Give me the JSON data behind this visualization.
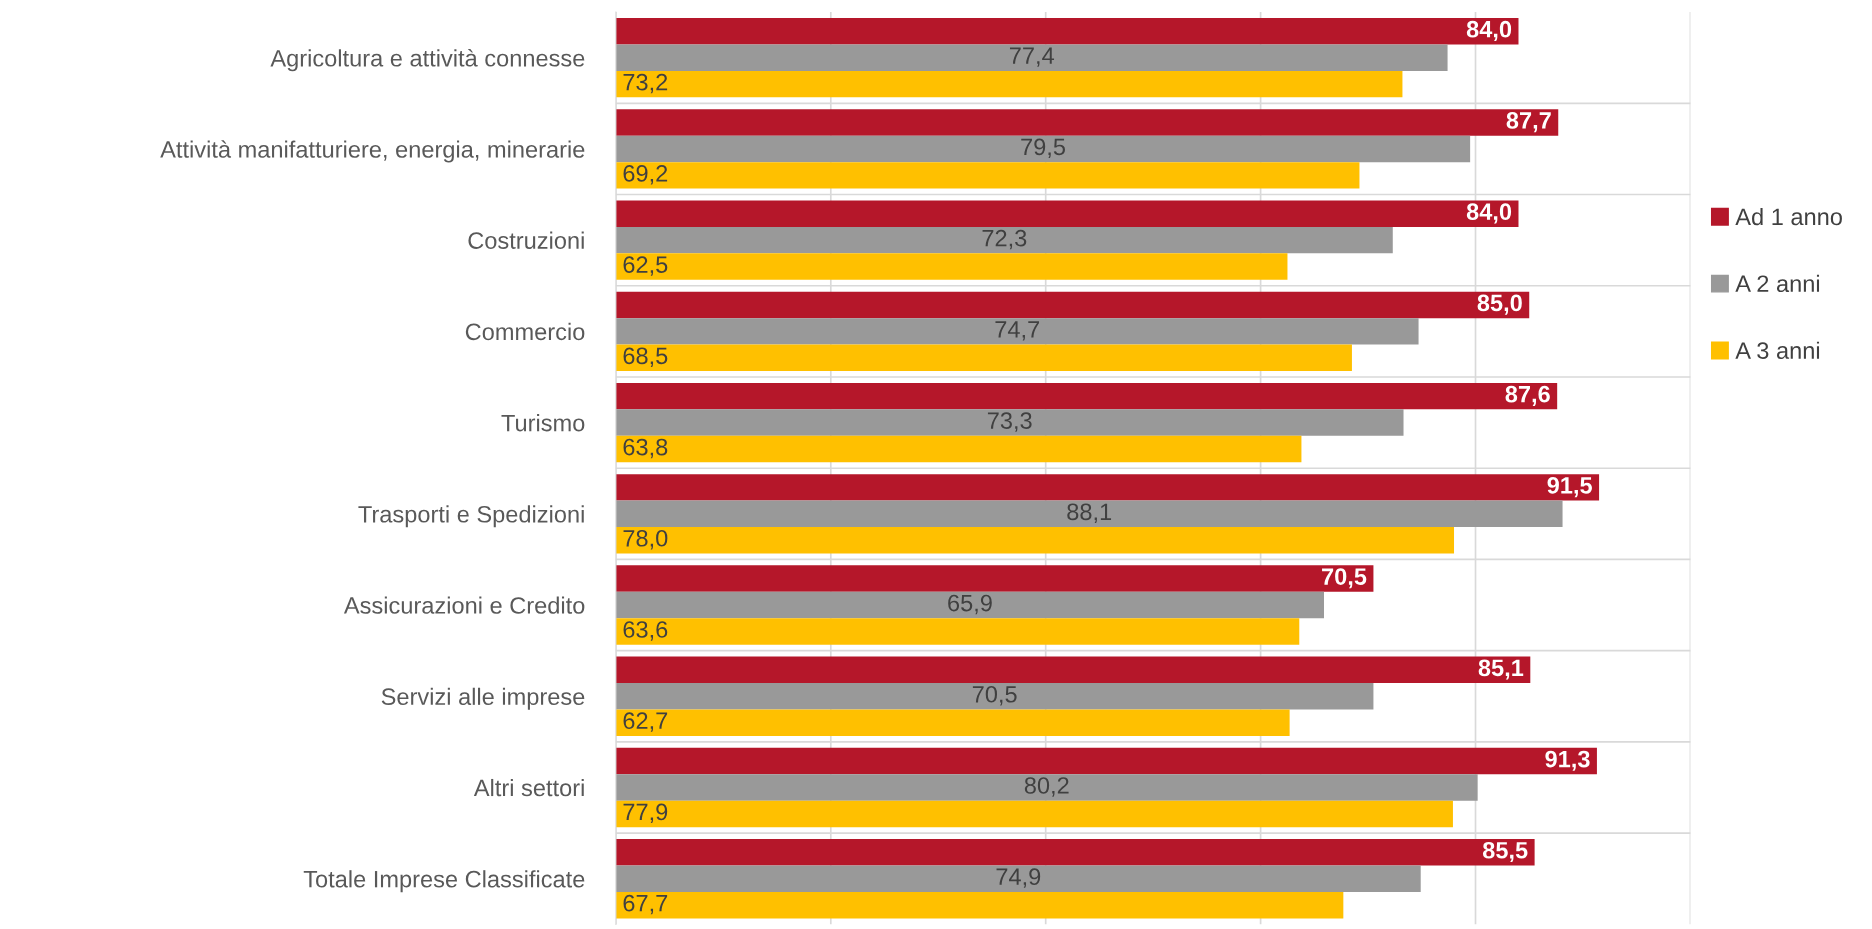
{
  "chart_data": {
    "type": "bar",
    "orientation": "horizontal",
    "categories": [
      "Agricoltura e attività connesse",
      "Attività manifatturiere, energia, minerarie",
      "Costruzioni",
      "Commercio",
      "Turismo",
      "Trasporti e Spedizioni",
      "Assicurazioni e Credito",
      "Servizi alle imprese",
      "Altri settori",
      "Totale Imprese Classificate"
    ],
    "series": [
      {
        "name": "Ad 1 anno",
        "color": "#b5172a",
        "values": [
          84.0,
          87.7,
          84.0,
          85.0,
          87.6,
          91.5,
          70.5,
          85.1,
          91.3,
          85.5
        ],
        "value_labels": [
          "84,0",
          "87,7",
          "84,0",
          "85,0",
          "87,6",
          "91,5",
          "70,5",
          "85,1",
          "91,3",
          "85,5"
        ]
      },
      {
        "name": "A 2 anni",
        "color": "#999999",
        "values": [
          77.4,
          79.5,
          72.3,
          74.7,
          73.3,
          88.1,
          65.9,
          70.5,
          80.2,
          74.9
        ],
        "value_labels": [
          "77,4",
          "79,5",
          "72,3",
          "74,7",
          "73,3",
          "88,1",
          "65,9",
          "70,5",
          "80,2",
          "74,9"
        ]
      },
      {
        "name": "A 3 anni",
        "color": "#ffc000",
        "values": [
          73.2,
          69.2,
          62.5,
          68.5,
          63.8,
          78.0,
          63.6,
          62.7,
          77.9,
          67.7
        ],
        "value_labels": [
          "73,2",
          "69,2",
          "62,5",
          "68,5",
          "63,8",
          "78,0",
          "63,6",
          "62,7",
          "77,9",
          "67,7"
        ]
      }
    ],
    "xlim": [
      0,
      100
    ],
    "xticks": [
      {
        "value": 0,
        "label": null
      },
      {
        "value": 20,
        "label": null
      },
      {
        "value": 40,
        "label": null
      },
      {
        "value": 60,
        "label": null
      },
      {
        "value": 80,
        "label": null
      },
      {
        "value": 100,
        "label": null
      }
    ],
    "tick_labels": "y",
    "grid": true,
    "legend": "right"
  }
}
